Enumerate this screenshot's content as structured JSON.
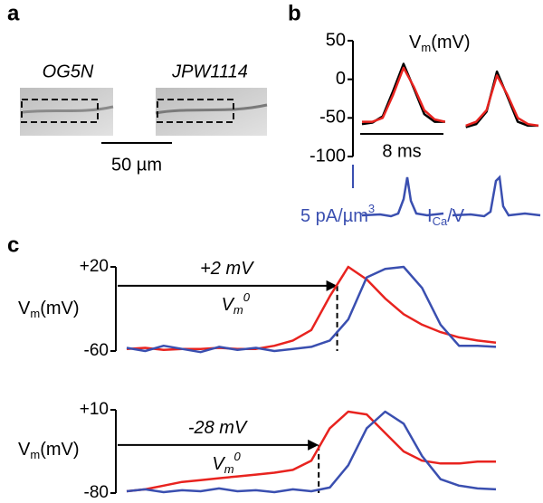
{
  "panel_labels": [
    "a",
    "b",
    "c"
  ],
  "panel_a": {
    "image_labels": [
      "OG5N",
      "JPW1114"
    ],
    "scale_bar": "50 µm"
  },
  "panel_b": {
    "scale_bar": "8 ms",
    "current_scale": {
      "main": "5 pA/µm",
      "sup": "3"
    },
    "current_label": {
      "main": "I",
      "sub": "Ca",
      "rest": "/V"
    }
  },
  "chart_data": [
    {
      "type": "line",
      "ylabel": {
        "main": "V",
        "sub": "m",
        "rest": "(mV)"
      },
      "x": [
        0,
        1,
        2,
        3,
        4,
        5,
        6,
        7,
        8,
        9,
        10,
        11,
        12,
        13,
        14,
        15,
        16,
        17
      ],
      "xlim": [
        0,
        17
      ],
      "ylim": [
        -100,
        50
      ],
      "yticks": [
        50,
        0,
        -50,
        -100
      ],
      "series": [
        {
          "color": "#000000",
          "values": [
            -58,
            -56,
            -48,
            -15,
            20,
            -12,
            -45,
            -55,
            -55,
            null,
            -62,
            -58,
            -42,
            10,
            -22,
            -55,
            -60,
            -60
          ]
        },
        {
          "color": "#e8231f",
          "values": [
            -55,
            -55,
            -50,
            -20,
            15,
            -10,
            -40,
            -52,
            -55,
            null,
            -60,
            -55,
            -40,
            5,
            -20,
            -50,
            -58,
            -60
          ]
        }
      ]
    },
    {
      "type": "line",
      "ylabel": {
        "main": "V",
        "sub": "m",
        "rest": "(mV)"
      },
      "x": [
        0,
        1,
        2,
        3,
        4,
        5,
        6,
        7,
        8,
        9,
        10,
        11,
        12,
        13,
        14,
        15,
        16,
        17,
        18,
        19,
        20
      ],
      "xlim": [
        0,
        20
      ],
      "ylim": [
        -60,
        20
      ],
      "yticks": [
        {
          "value": 20,
          "label": "+20"
        },
        -60
      ],
      "threshold": {
        "value": 2,
        "label": "+2 mV"
      },
      "threshold_x": 11.4,
      "threshold_name": {
        "main": "V",
        "sub": "m",
        "sup": "0"
      },
      "series": [
        {
          "color": "#e8231f",
          "values": [
            -58,
            -57,
            -59,
            -58,
            -58,
            -57,
            -58,
            -58,
            -55,
            -50,
            -40,
            -8,
            20,
            8,
            -10,
            -25,
            -35,
            -42,
            -47,
            -50,
            -52
          ]
        },
        {
          "color": "#3a4fb0",
          "values": [
            -57,
            -60,
            -55,
            -58,
            -61,
            -56,
            -59,
            -57,
            -60,
            -58,
            -56,
            -50,
            -30,
            10,
            18,
            20,
            0,
            -35,
            -55,
            -55,
            -56
          ]
        }
      ]
    },
    {
      "type": "line",
      "ylabel": {
        "main": "V",
        "sub": "m",
        "rest": "(mV)"
      },
      "x": [
        0,
        1,
        2,
        3,
        4,
        5,
        6,
        7,
        8,
        9,
        10,
        11,
        12,
        13,
        14,
        15,
        16,
        17,
        18,
        19,
        20
      ],
      "xlim": [
        0,
        20
      ],
      "ylim": [
        -80,
        10
      ],
      "yticks": [
        {
          "value": 10,
          "label": "+10"
        },
        -80
      ],
      "threshold": {
        "value": -28,
        "label": "-28 mV"
      },
      "threshold_x": 10.4,
      "threshold_name": {
        "main": "V",
        "sub": "m",
        "sup": "0"
      },
      "series": [
        {
          "color": "#e8231f",
          "values": [
            -78,
            -76,
            -72,
            -68,
            -66,
            -64,
            -62,
            -60,
            -58,
            -55,
            -45,
            -10,
            8,
            5,
            -15,
            -35,
            -45,
            -48,
            -48,
            -46,
            -46
          ]
        },
        {
          "color": "#3a4fb0",
          "values": [
            -78,
            -76,
            -79,
            -77,
            -78,
            -75,
            -78,
            -77,
            -79,
            -76,
            -78,
            -74,
            -50,
            -10,
            8,
            -5,
            -40,
            -65,
            -72,
            -75,
            -76
          ]
        }
      ]
    }
  ]
}
